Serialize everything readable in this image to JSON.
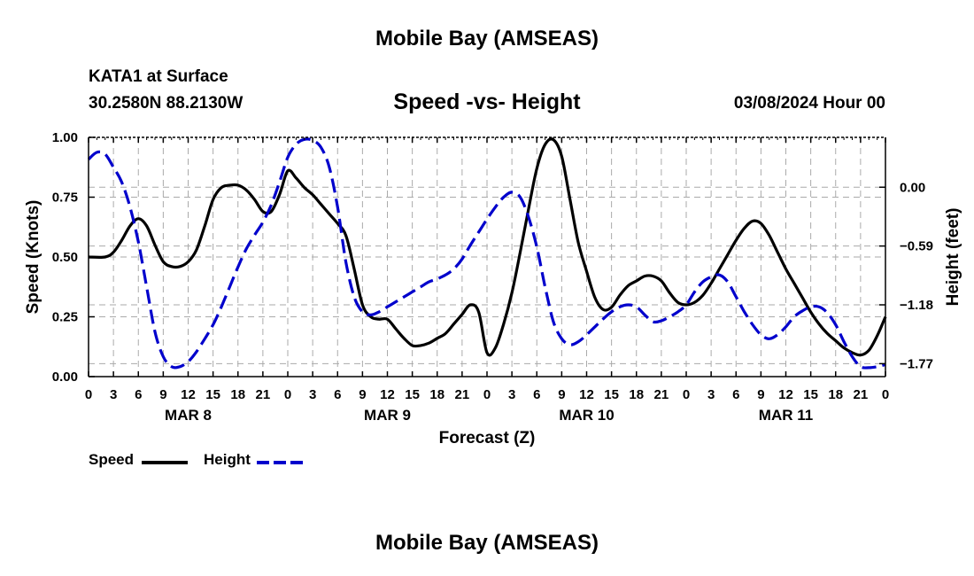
{
  "header": {
    "title": "Mobile Bay (AMSEAS)",
    "station": "KATA1 at Surface",
    "coords": "30.2580N  88.2130W",
    "chart_title": "Speed -vs- Height",
    "datetime": "03/08/2024 Hour 00"
  },
  "footer": {
    "title": "Mobile Bay (AMSEAS)"
  },
  "legend": {
    "items": [
      {
        "label": "Speed",
        "color": "#000000",
        "dash": "solid"
      },
      {
        "label": "Height",
        "color": "#0000cc",
        "dash": "dashed"
      }
    ]
  },
  "chart_data": {
    "type": "line",
    "title": "Speed -vs- Height",
    "xlabel": "Forecast (Z)",
    "ylabel": "Speed (Knots)",
    "y2label": "Height (feet)",
    "x_range_hours": [
      0,
      96
    ],
    "ylim": [
      0,
      1
    ],
    "y2lim": [
      -1.9,
      0.5
    ],
    "yticks": [
      "0.00",
      "0.25",
      "0.50",
      "0.75",
      "1.00"
    ],
    "y2ticks": [
      "0.00",
      "−0.59",
      "−1.18",
      "−1.77"
    ],
    "y2tick_values": [
      0.0,
      -0.59,
      -1.18,
      -1.77
    ],
    "xtick_hours": [
      0,
      3,
      6,
      9,
      12,
      15,
      18,
      21,
      24,
      27,
      30,
      33,
      36,
      39,
      42,
      45,
      48,
      51,
      54,
      57,
      60,
      63,
      66,
      69,
      72,
      75,
      78,
      81,
      84,
      87,
      90,
      93,
      96
    ],
    "xtick_labels": [
      "0",
      "3",
      "6",
      "9",
      "12",
      "15",
      "18",
      "21",
      "0",
      "3",
      "6",
      "9",
      "12",
      "15",
      "18",
      "21",
      "0",
      "3",
      "6",
      "9",
      "12",
      "15",
      "18",
      "21",
      "0",
      "3",
      "6",
      "9",
      "12",
      "15",
      "18",
      "21",
      "0"
    ],
    "day_labels": [
      {
        "label": "MAR 8",
        "hour": 12
      },
      {
        "label": "MAR 9",
        "hour": 36
      },
      {
        "label": "MAR 10",
        "hour": 60
      },
      {
        "label": "MAR 11",
        "hour": 84
      }
    ],
    "grid": true,
    "series": [
      {
        "name": "Speed",
        "axis": "left",
        "color": "#000000",
        "dash": "solid",
        "x": [
          0,
          2,
          3,
          4,
          5,
          6,
          7,
          8,
          9,
          10,
          11,
          12,
          13,
          14,
          15,
          16,
          17,
          18,
          19,
          20,
          21,
          22,
          23,
          24,
          25,
          26,
          27,
          28,
          29,
          30,
          31,
          32,
          33,
          34,
          35,
          36,
          37,
          38,
          39,
          40,
          41,
          42,
          43,
          44,
          45,
          46,
          47,
          48,
          49,
          50,
          51,
          52,
          53,
          54,
          55,
          56,
          57,
          58,
          59,
          60,
          61,
          62,
          63,
          64,
          65,
          66,
          67,
          68,
          69,
          70,
          71,
          72,
          73,
          74,
          75,
          76,
          77,
          78,
          79,
          80,
          81,
          82,
          83,
          84,
          85,
          86,
          87,
          88,
          89,
          90,
          91,
          92,
          93,
          94,
          95,
          96
        ],
        "values": [
          0.5,
          0.5,
          0.52,
          0.57,
          0.63,
          0.66,
          0.63,
          0.55,
          0.48,
          0.46,
          0.46,
          0.48,
          0.53,
          0.63,
          0.74,
          0.79,
          0.8,
          0.8,
          0.78,
          0.74,
          0.69,
          0.69,
          0.76,
          0.86,
          0.83,
          0.79,
          0.76,
          0.72,
          0.68,
          0.64,
          0.59,
          0.45,
          0.3,
          0.25,
          0.24,
          0.24,
          0.2,
          0.16,
          0.13,
          0.13,
          0.14,
          0.16,
          0.18,
          0.22,
          0.26,
          0.3,
          0.27,
          0.1,
          0.12,
          0.22,
          0.35,
          0.52,
          0.7,
          0.87,
          0.97,
          0.99,
          0.92,
          0.74,
          0.56,
          0.44,
          0.33,
          0.28,
          0.29,
          0.34,
          0.38,
          0.4,
          0.42,
          0.42,
          0.4,
          0.35,
          0.31,
          0.3,
          0.31,
          0.34,
          0.39,
          0.45,
          0.51,
          0.57,
          0.62,
          0.65,
          0.64,
          0.59,
          0.52,
          0.45,
          0.39,
          0.33,
          0.27,
          0.22,
          0.18,
          0.15,
          0.12,
          0.1,
          0.09,
          0.11,
          0.17,
          0.25
        ]
      },
      {
        "name": "Height",
        "axis": "right",
        "color": "#0000cc",
        "dash": "dashed",
        "x": [
          0,
          1,
          2,
          3,
          4,
          5,
          6,
          7,
          8,
          9,
          10,
          11,
          12,
          13,
          14,
          15,
          16,
          17,
          18,
          19,
          20,
          21,
          22,
          23,
          24,
          25,
          26,
          27,
          28,
          29,
          30,
          31,
          32,
          33,
          34,
          35,
          36,
          37,
          38,
          39,
          40,
          41,
          42,
          43,
          44,
          45,
          46,
          47,
          48,
          49,
          50,
          51,
          52,
          53,
          54,
          55,
          56,
          57,
          58,
          59,
          60,
          61,
          62,
          63,
          64,
          65,
          66,
          67,
          68,
          69,
          70,
          71,
          72,
          73,
          74,
          75,
          76,
          77,
          78,
          79,
          80,
          81,
          82,
          83,
          84,
          85,
          86,
          87,
          88,
          89,
          90,
          91,
          92,
          93,
          94,
          95,
          96
        ],
        "values": [
          0.28,
          0.35,
          0.33,
          0.2,
          0.05,
          -0.2,
          -0.55,
          -1.0,
          -1.45,
          -1.7,
          -1.8,
          -1.8,
          -1.75,
          -1.65,
          -1.52,
          -1.38,
          -1.2,
          -1.0,
          -0.8,
          -0.62,
          -0.48,
          -0.35,
          -0.18,
          0.05,
          0.3,
          0.43,
          0.48,
          0.47,
          0.4,
          0.2,
          -0.2,
          -0.75,
          -1.1,
          -1.25,
          -1.28,
          -1.25,
          -1.2,
          -1.15,
          -1.1,
          -1.05,
          -1.0,
          -0.95,
          -0.92,
          -0.88,
          -0.82,
          -0.72,
          -0.58,
          -0.45,
          -0.32,
          -0.2,
          -0.1,
          -0.05,
          -0.1,
          -0.3,
          -0.6,
          -1.0,
          -1.35,
          -1.52,
          -1.58,
          -1.55,
          -1.48,
          -1.4,
          -1.32,
          -1.25,
          -1.2,
          -1.18,
          -1.2,
          -1.28,
          -1.35,
          -1.34,
          -1.3,
          -1.25,
          -1.18,
          -1.05,
          -0.95,
          -0.9,
          -0.88,
          -0.95,
          -1.1,
          -1.25,
          -1.38,
          -1.48,
          -1.52,
          -1.48,
          -1.4,
          -1.3,
          -1.24,
          -1.2,
          -1.2,
          -1.26,
          -1.38,
          -1.55,
          -1.7,
          -1.8,
          -1.81,
          -1.8,
          -1.78
        ]
      }
    ]
  }
}
